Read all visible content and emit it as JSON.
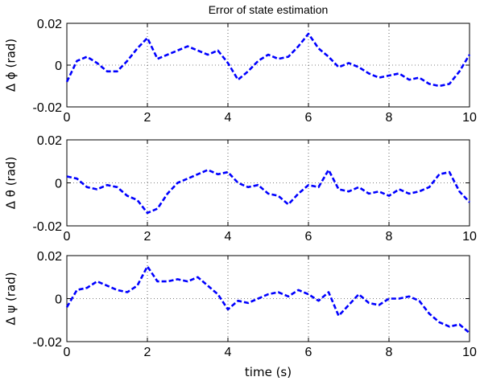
{
  "chart_data": {
    "type": "line",
    "title": "Error of state estimation",
    "xlabel": "time (s)",
    "xlim": [
      0,
      10
    ],
    "xticks": [
      0,
      2,
      4,
      6,
      8,
      10
    ],
    "grid": true,
    "line_style": "dashed",
    "line_color": "#0000ff",
    "subplots": [
      {
        "ylabel": "Δ ϕ (rad)",
        "ylim": [
          -0.02,
          0.02
        ],
        "yticks": [
          "-0.02",
          "0",
          "0.02"
        ],
        "x": [
          0,
          0.25,
          0.5,
          0.75,
          1.0,
          1.25,
          1.5,
          1.75,
          2.0,
          2.25,
          2.5,
          2.75,
          3.0,
          3.25,
          3.5,
          3.75,
          4.0,
          4.25,
          4.5,
          4.75,
          5.0,
          5.25,
          5.5,
          5.75,
          6.0,
          6.25,
          6.5,
          6.75,
          7.0,
          7.25,
          7.5,
          7.75,
          8.0,
          8.25,
          8.5,
          8.75,
          9.0,
          9.25,
          9.5,
          9.75,
          10.0
        ],
        "y": [
          -0.008,
          0.002,
          0.004,
          0.001,
          -0.003,
          -0.003,
          0.002,
          0.008,
          0.013,
          0.003,
          0.005,
          0.007,
          0.009,
          0.007,
          0.005,
          0.007,
          0.001,
          -0.007,
          -0.003,
          0.002,
          0.005,
          0.003,
          0.004,
          0.009,
          0.015,
          0.008,
          0.004,
          -0.001,
          0.001,
          -0.001,
          -0.004,
          -0.006,
          -0.005,
          -0.004,
          -0.007,
          -0.006,
          -0.009,
          -0.01,
          -0.009,
          -0.003,
          0.005
        ]
      },
      {
        "ylabel": "Δ θ (rad)",
        "ylim": [
          -0.02,
          0.02
        ],
        "yticks": [
          "-0.02",
          "0",
          "0.02"
        ],
        "x": [
          0,
          0.25,
          0.5,
          0.75,
          1.0,
          1.25,
          1.5,
          1.75,
          2.0,
          2.25,
          2.5,
          2.75,
          3.0,
          3.25,
          3.5,
          3.75,
          4.0,
          4.25,
          4.5,
          4.75,
          5.0,
          5.25,
          5.5,
          5.75,
          6.0,
          6.25,
          6.5,
          6.75,
          7.0,
          7.25,
          7.5,
          7.75,
          8.0,
          8.25,
          8.5,
          8.75,
          9.0,
          9.25,
          9.5,
          9.75,
          10.0
        ],
        "y": [
          0.003,
          0.002,
          -0.002,
          -0.003,
          -0.001,
          -0.002,
          -0.006,
          -0.008,
          -0.014,
          -0.012,
          -0.005,
          0.0,
          0.002,
          0.004,
          0.006,
          0.004,
          0.005,
          0.0,
          -0.002,
          -0.001,
          -0.005,
          -0.006,
          -0.01,
          -0.005,
          -0.001,
          -0.002,
          0.006,
          -0.003,
          -0.004,
          -0.002,
          -0.005,
          -0.004,
          -0.006,
          -0.003,
          -0.005,
          -0.004,
          -0.002,
          0.004,
          0.005,
          -0.004,
          -0.009
        ]
      },
      {
        "ylabel": "Δ ψ (rad)",
        "ylim": [
          -0.02,
          0.02
        ],
        "yticks": [
          "-0.02",
          "0",
          "0.02"
        ],
        "x": [
          0,
          0.25,
          0.5,
          0.75,
          1.0,
          1.25,
          1.5,
          1.75,
          2.0,
          2.25,
          2.5,
          2.75,
          3.0,
          3.25,
          3.5,
          3.75,
          4.0,
          4.25,
          4.5,
          4.75,
          5.0,
          5.25,
          5.5,
          5.75,
          6.0,
          6.25,
          6.5,
          6.75,
          7.0,
          7.25,
          7.5,
          7.75,
          8.0,
          8.25,
          8.5,
          8.75,
          9.0,
          9.25,
          9.5,
          9.75,
          10.0
        ],
        "y": [
          -0.004,
          0.004,
          0.005,
          0.008,
          0.006,
          0.004,
          0.003,
          0.006,
          0.015,
          0.008,
          0.008,
          0.009,
          0.008,
          0.01,
          0.006,
          0.002,
          -0.005,
          -0.001,
          -0.002,
          0.0,
          0.002,
          0.003,
          0.001,
          0.004,
          0.002,
          -0.001,
          0.003,
          -0.008,
          -0.003,
          0.002,
          -0.002,
          -0.003,
          0.0,
          0.0,
          0.001,
          -0.001,
          -0.007,
          -0.011,
          -0.013,
          -0.012,
          -0.016
        ]
      }
    ]
  }
}
